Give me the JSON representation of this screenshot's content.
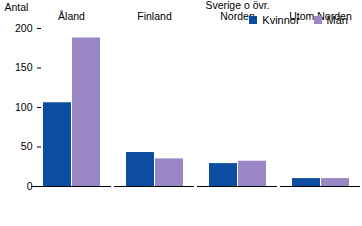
{
  "chart_data": {
    "type": "bar",
    "categories": [
      "Åland",
      "Finland",
      "Sverige o övr. Norden",
      "Utom Norden"
    ],
    "series": [
      {
        "name": "Kvinnor",
        "color": "#0b4ea2",
        "values": [
          106,
          43,
          29,
          10
        ]
      },
      {
        "name": "Män",
        "color": "#9a87c6",
        "values": [
          188,
          35,
          32,
          10
        ]
      }
    ],
    "y_label": "Antal",
    "ylim": [
      0,
      200
    ],
    "yticks": [
      0,
      50,
      100,
      150,
      200
    ],
    "grid": false,
    "legend": "top-right"
  }
}
